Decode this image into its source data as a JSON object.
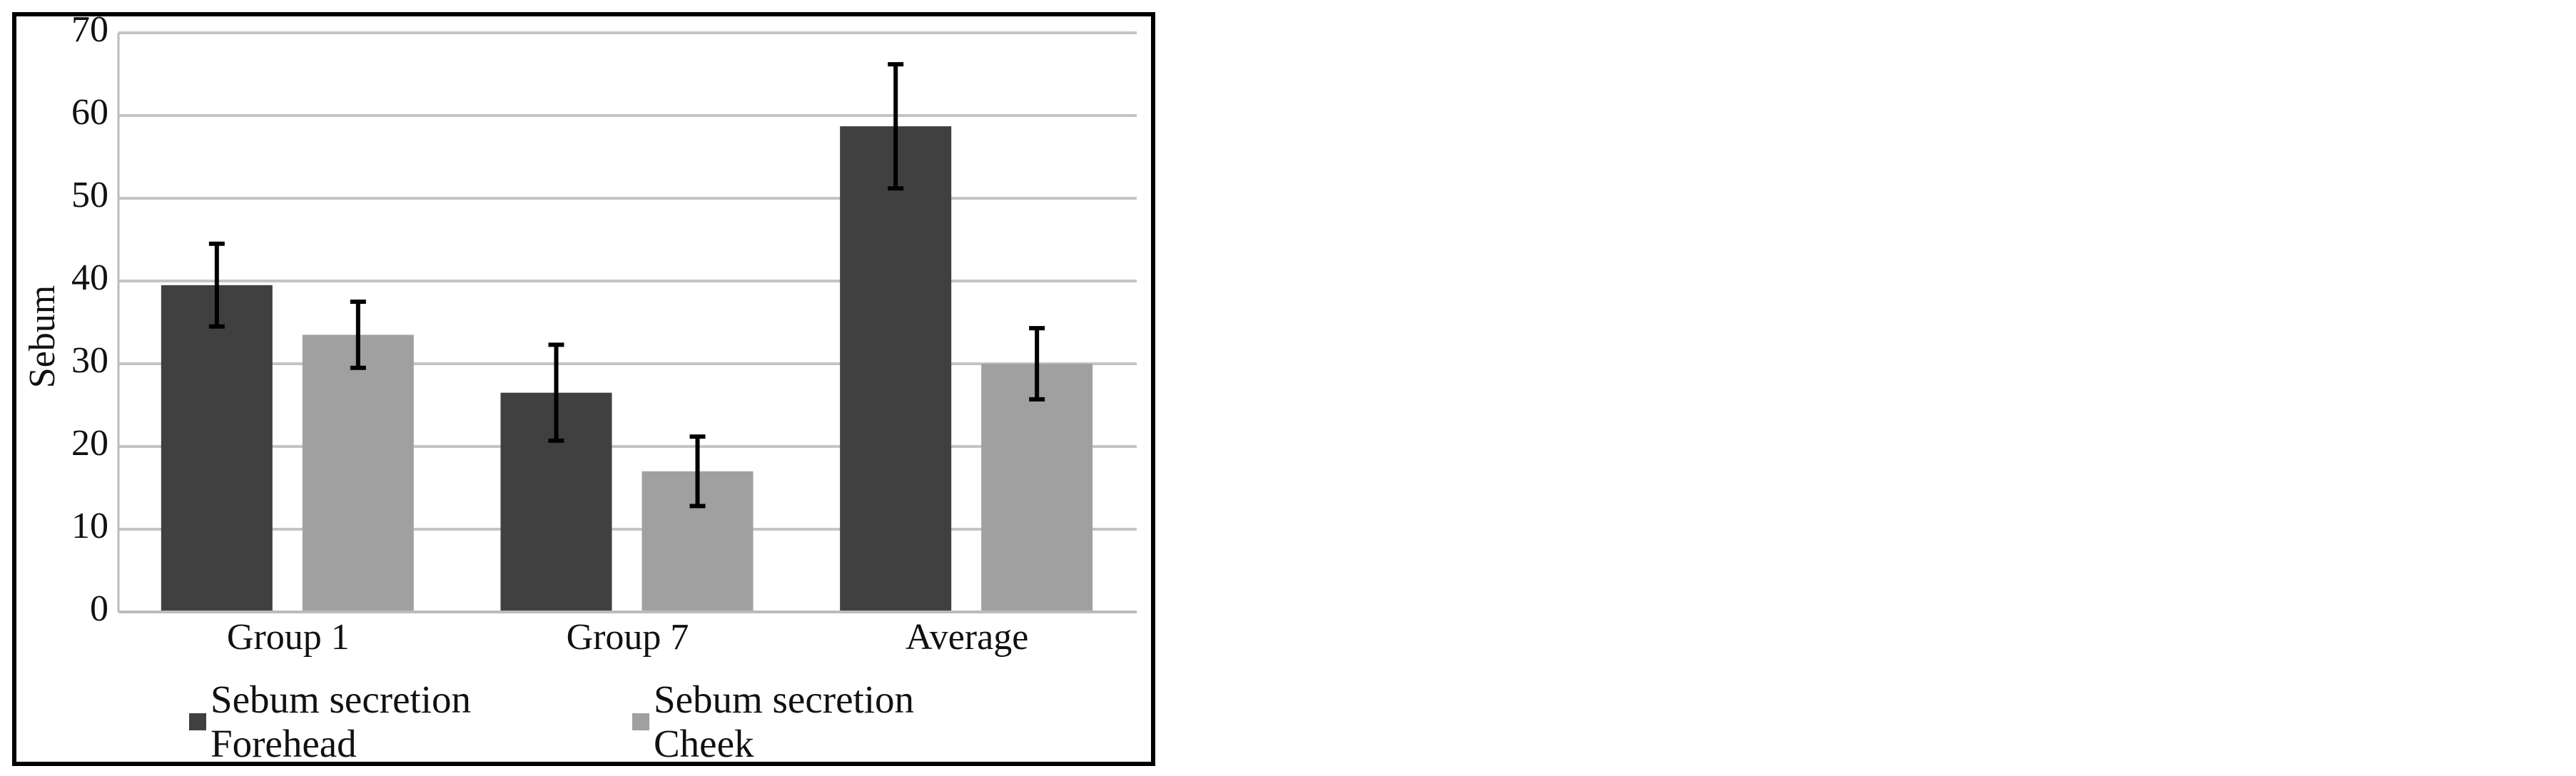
{
  "chart_data": {
    "type": "bar",
    "y_label": "Sebum",
    "categories": [
      "Group 1",
      "Group 7",
      "Average"
    ],
    "series": [
      {
        "name": "Sebum secretion Forehead",
        "color": "#404040",
        "values": [
          39.5,
          26.5,
          58.7
        ],
        "errors": [
          5,
          5.8,
          7.5
        ]
      },
      {
        "name": "Sebum secretion Cheek",
        "color": "#a0a0a0",
        "values": [
          33.5,
          17,
          30
        ],
        "errors": [
          4,
          4.2,
          4.3
        ]
      }
    ],
    "ylim": [
      0,
      70
    ],
    "yticks": [
      0,
      10,
      20,
      30,
      40,
      50,
      60,
      70
    ],
    "grid": true
  }
}
